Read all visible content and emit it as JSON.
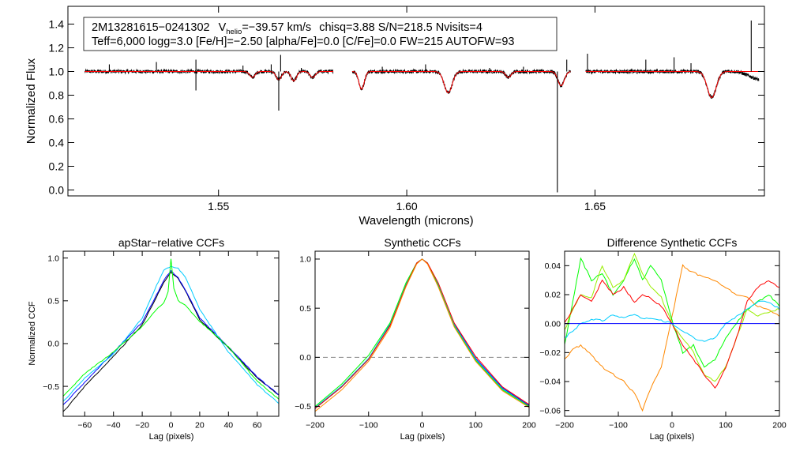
{
  "colors": {
    "observed": "#000000",
    "model": "#ff0000",
    "ccf_series": [
      "#000000",
      "#0000ff",
      "#00ccff",
      "#00ff00",
      "#ff0000",
      "#ff8800",
      "#99ee00"
    ]
  },
  "chart_data": [
    {
      "type": "line",
      "id": "spectrum",
      "title": "",
      "xlabel": "Wavelength (microns)",
      "ylabel": "Normalized Flux",
      "xlim": [
        1.51,
        1.695
      ],
      "ylim": [
        -0.05,
        1.55
      ],
      "xticks": [
        1.55,
        1.6,
        1.65
      ],
      "xtick_labels": [
        "1.55",
        "1.60",
        "1.65"
      ],
      "yticks": [
        0.0,
        0.2,
        0.4,
        0.6,
        0.8,
        1.0,
        1.2,
        1.4
      ],
      "ytick_labels": [
        "0.0",
        "0.2",
        "0.4",
        "0.6",
        "0.8",
        "1.0",
        "1.2",
        "1.4"
      ],
      "header": {
        "star": "2M13281615−0241302",
        "v_label": "V",
        "v_sub": "helio",
        "v_value": "=−39.57 km/s",
        "stats": "chisq=3.88  S/N=218.5  Nvisits=4",
        "params": "Teff=6,000 logg=3.0 [Fe/H]=−2.50 [alpha/Fe]=0.0 [C/Fe]=0.0 FW=215 AUTOFW=93"
      },
      "chips": [
        [
          1.5145,
          1.5805
        ],
        [
          1.5855,
          1.6435
        ],
        [
          1.6475,
          1.6935
        ]
      ],
      "absorption_lines": [
        {
          "x": 1.559,
          "depth": 0.05,
          "width": 0.001
        },
        {
          "x": 1.566,
          "depth": 0.07,
          "width": 0.001
        },
        {
          "x": 1.57,
          "depth": 0.08,
          "width": 0.001
        },
        {
          "x": 1.575,
          "depth": 0.05,
          "width": 0.001
        },
        {
          "x": 1.588,
          "depth": 0.15,
          "width": 0.001
        },
        {
          "x": 1.611,
          "depth": 0.18,
          "width": 0.0015
        },
        {
          "x": 1.627,
          "depth": 0.05,
          "width": 0.001
        },
        {
          "x": 1.641,
          "depth": 0.12,
          "width": 0.0012
        },
        {
          "x": 1.681,
          "depth": 0.22,
          "width": 0.0017
        }
      ],
      "spikes": [
        {
          "x": 1.521,
          "dy": 0.06
        },
        {
          "x": 1.5335,
          "dy": 0.08
        },
        {
          "x": 1.544,
          "dy": 0.1
        },
        {
          "x": 1.544,
          "dy": -0.16
        },
        {
          "x": 1.5565,
          "dy": 0.05
        },
        {
          "x": 1.564,
          "dy": 0.06
        },
        {
          "x": 1.566,
          "dy": -0.33
        },
        {
          "x": 1.5665,
          "dy": 0.14
        },
        {
          "x": 1.572,
          "dy": 0.03
        },
        {
          "x": 1.5935,
          "dy": 0.04
        },
        {
          "x": 1.605,
          "dy": 0.06
        },
        {
          "x": 1.622,
          "dy": 0.03
        },
        {
          "x": 1.631,
          "dy": 0.04
        },
        {
          "x": 1.64,
          "dy": -1.02
        },
        {
          "x": 1.6425,
          "dy": 0.1
        },
        {
          "x": 1.648,
          "dy": 0.15
        },
        {
          "x": 1.6635,
          "dy": 0.1
        },
        {
          "x": 1.671,
          "dy": 0.12
        },
        {
          "x": 1.6755,
          "dy": 0.07
        },
        {
          "x": 1.6915,
          "dy": 0.43
        }
      ],
      "tail": {
        "x0": 1.688,
        "x1": 1.6935,
        "drop": 0.07
      }
    },
    {
      "type": "line",
      "id": "apstar_ccf",
      "title": "apStar−relative CCFs",
      "xlabel": "Lag (pixels)",
      "ylabel": "Normalized CCF",
      "xlim": [
        -75,
        75
      ],
      "ylim": [
        -0.85,
        1.08
      ],
      "xticks": [
        -60,
        -40,
        -20,
        0,
        20,
        40,
        60
      ],
      "xtick_labels": [
        "−60",
        "−40",
        "−20",
        "0",
        "20",
        "40",
        "60"
      ],
      "yticks": [
        -0.5,
        0.0,
        0.5,
        1.0
      ],
      "ytick_labels": [
        "−0.5",
        "0.0",
        "0.5",
        "1.0"
      ],
      "series": [
        {
          "name": "combined-black",
          "color_index": 0,
          "x": [
            -75,
            -60,
            -40,
            -20,
            -10,
            -5,
            0,
            5,
            10,
            20,
            40,
            60,
            75
          ],
          "y": [
            -0.8,
            -0.5,
            -0.15,
            0.22,
            0.55,
            0.72,
            0.83,
            0.76,
            0.62,
            0.28,
            -0.05,
            -0.4,
            -0.6
          ]
        },
        {
          "name": "visit-blue",
          "color_index": 1,
          "x": [
            -75,
            -60,
            -40,
            -20,
            -10,
            -5,
            0,
            5,
            10,
            20,
            40,
            60,
            75
          ],
          "y": [
            -0.72,
            -0.45,
            -0.1,
            0.25,
            0.57,
            0.74,
            0.85,
            0.77,
            0.63,
            0.3,
            -0.04,
            -0.39,
            -0.6
          ]
        },
        {
          "name": "visit-cyan",
          "color_index": 2,
          "x": [
            -75,
            -60,
            -40,
            -20,
            -10,
            -5,
            0,
            5,
            10,
            20,
            40,
            60,
            75
          ],
          "y": [
            -0.68,
            -0.4,
            -0.12,
            0.3,
            0.68,
            0.86,
            0.9,
            0.88,
            0.78,
            0.4,
            -0.1,
            -0.48,
            -0.7
          ]
        },
        {
          "name": "visit-green",
          "color_index": 3,
          "x": [
            -75,
            -60,
            -40,
            -20,
            -10,
            -5,
            -2,
            0,
            2,
            5,
            10,
            20,
            40,
            60,
            75
          ],
          "y": [
            -0.62,
            -0.35,
            -0.1,
            0.2,
            0.4,
            0.48,
            0.6,
            0.99,
            0.65,
            0.5,
            0.45,
            0.26,
            -0.04,
            -0.44,
            -0.65
          ]
        }
      ]
    },
    {
      "type": "line",
      "id": "synthetic_ccf",
      "title": "Synthetic CCFs",
      "xlabel": "Lag (pixels)",
      "ylabel": "",
      "xlim": [
        -200,
        200
      ],
      "ylim": [
        -0.6,
        1.08
      ],
      "xticks": [
        -200,
        -100,
        0,
        100,
        200
      ],
      "xtick_labels": [
        "−200",
        "−100",
        "0",
        "100",
        "200"
      ],
      "yticks": [
        -0.5,
        0.0,
        0.5,
        1.0
      ],
      "ytick_labels": [
        "−0.5",
        "0.0",
        "0.5",
        "1.0"
      ],
      "zero_line": true,
      "series": [
        {
          "name": "combined-black",
          "color_index": 0,
          "x": [
            -200,
            -150,
            -100,
            -60,
            -30,
            -10,
            0,
            10,
            30,
            60,
            100,
            150,
            200
          ],
          "y": [
            -0.52,
            -0.3,
            -0.02,
            0.33,
            0.74,
            0.96,
            1.0,
            0.96,
            0.74,
            0.33,
            -0.02,
            -0.32,
            -0.5
          ]
        },
        {
          "name": "visit-blue",
          "color_index": 1,
          "x": [
            -200,
            -150,
            -100,
            -60,
            -30,
            -10,
            0,
            10,
            30,
            60,
            100,
            150,
            200
          ],
          "y": [
            -0.52,
            -0.3,
            -0.02,
            0.34,
            0.75,
            0.96,
            1.0,
            0.96,
            0.75,
            0.34,
            -0.01,
            -0.31,
            -0.49
          ]
        },
        {
          "name": "visit-cyan",
          "color_index": 2,
          "x": [
            -200,
            -150,
            -100,
            -60,
            -30,
            -10,
            0,
            10,
            30,
            60,
            100,
            150,
            200
          ],
          "y": [
            -0.51,
            -0.29,
            -0.01,
            0.34,
            0.75,
            0.96,
            1.0,
            0.96,
            0.75,
            0.33,
            -0.02,
            -0.32,
            -0.5
          ]
        },
        {
          "name": "visit-green",
          "color_index": 3,
          "x": [
            -200,
            -150,
            -100,
            -60,
            -30,
            -10,
            0,
            10,
            30,
            60,
            100,
            150,
            200
          ],
          "y": [
            -0.5,
            -0.27,
            0.02,
            0.35,
            0.76,
            0.96,
            1.0,
            0.96,
            0.73,
            0.32,
            -0.03,
            -0.33,
            -0.5
          ]
        },
        {
          "name": "visit-red",
          "color_index": 4,
          "x": [
            -200,
            -150,
            -100,
            -60,
            -30,
            -10,
            0,
            10,
            30,
            60,
            100,
            150,
            200
          ],
          "y": [
            -0.52,
            -0.3,
            -0.02,
            0.32,
            0.73,
            0.96,
            1.0,
            0.96,
            0.76,
            0.35,
            0.01,
            -0.3,
            -0.48
          ]
        },
        {
          "name": "visit-orange",
          "color_index": 5,
          "x": [
            -200,
            -150,
            -100,
            -60,
            -30,
            -10,
            0,
            10,
            30,
            60,
            100,
            150,
            200
          ],
          "y": [
            -0.55,
            -0.33,
            -0.04,
            0.3,
            0.72,
            0.95,
            1.0,
            0.95,
            0.72,
            0.31,
            -0.04,
            -0.34,
            -0.51
          ]
        }
      ]
    },
    {
      "type": "line",
      "id": "difference_ccf",
      "title": "Difference Synthetic CCFs",
      "xlabel": "Lag (pixels)",
      "ylabel": "",
      "xlim": [
        -200,
        200
      ],
      "ylim": [
        -0.064,
        0.05
      ],
      "xticks": [
        -200,
        -100,
        0,
        100,
        200
      ],
      "xtick_labels": [
        "−200",
        "−100",
        "0",
        "100",
        "200"
      ],
      "yticks": [
        -0.06,
        -0.04,
        -0.02,
        0.0,
        0.02,
        0.04
      ],
      "ytick_labels": [
        "−0.06",
        "−0.04",
        "−0.02",
        "0.00",
        "0.02",
        "0.04"
      ],
      "series": [
        {
          "name": "diff-orange",
          "color_index": 5,
          "x": [
            -200,
            -185,
            -170,
            -150,
            -130,
            -110,
            -90,
            -70,
            -55,
            -40,
            -20,
            0,
            20,
            40,
            60,
            80,
            100,
            120,
            140,
            160,
            180,
            200
          ],
          "y": [
            -0.025,
            -0.018,
            -0.015,
            -0.022,
            -0.03,
            -0.035,
            -0.04,
            -0.048,
            -0.06,
            -0.045,
            -0.03,
            0.005,
            0.04,
            0.035,
            0.032,
            0.03,
            0.025,
            0.02,
            0.018,
            0.012,
            0.01,
            0.005
          ]
        },
        {
          "name": "diff-green",
          "color_index": 3,
          "x": [
            -200,
            -185,
            -170,
            -150,
            -130,
            -110,
            -90,
            -70,
            -55,
            -40,
            -20,
            0,
            20,
            40,
            60,
            80,
            100,
            120,
            140,
            160,
            180,
            200
          ],
          "y": [
            -0.015,
            0.015,
            0.045,
            0.03,
            0.035,
            0.02,
            0.03,
            0.045,
            0.03,
            0.04,
            0.03,
            0.002,
            -0.02,
            -0.015,
            -0.03,
            -0.025,
            -0.01,
            0.0,
            0.01,
            0.015,
            0.02,
            0.012
          ]
        },
        {
          "name": "diff-lime",
          "color_index": 6,
          "x": [
            -200,
            -185,
            -170,
            -150,
            -130,
            -110,
            -90,
            -70,
            -55,
            -40,
            -20,
            0,
            20,
            40,
            60,
            80,
            100,
            120,
            140,
            160,
            180,
            200
          ],
          "y": [
            -0.005,
            0.01,
            0.02,
            0.018,
            0.04,
            0.025,
            0.03,
            0.048,
            0.035,
            0.025,
            0.018,
            0.0,
            -0.01,
            -0.02,
            -0.035,
            -0.04,
            -0.03,
            -0.01,
            0.01,
            0.005,
            0.008,
            0.01
          ]
        },
        {
          "name": "diff-red",
          "color_index": 4,
          "x": [
            -200,
            -185,
            -170,
            -150,
            -130,
            -110,
            -90,
            -70,
            -55,
            -40,
            -20,
            0,
            20,
            40,
            60,
            80,
            100,
            120,
            140,
            160,
            180,
            200
          ],
          "y": [
            0.0,
            0.01,
            0.02,
            0.015,
            0.03,
            0.02,
            0.025,
            0.015,
            0.02,
            0.018,
            0.012,
            0.0,
            -0.015,
            -0.025,
            -0.035,
            -0.045,
            -0.03,
            -0.01,
            0.015,
            0.025,
            0.03,
            0.025
          ]
        },
        {
          "name": "diff-cyan",
          "color_index": 2,
          "x": [
            -200,
            -185,
            -170,
            -150,
            -130,
            -110,
            -90,
            -70,
            -55,
            -40,
            -20,
            0,
            20,
            40,
            60,
            80,
            100,
            120,
            140,
            160,
            180,
            200
          ],
          "y": [
            -0.01,
            -0.005,
            0.0,
            0.003,
            0.002,
            0.006,
            0.004,
            0.006,
            0.004,
            0.003,
            0.002,
            0.0,
            -0.005,
            -0.01,
            -0.012,
            -0.01,
            0.0,
            0.005,
            0.01,
            0.015,
            0.015,
            0.01
          ]
        },
        {
          "name": "diff-blue",
          "color_index": 1,
          "x": [
            -200,
            200
          ],
          "y": [
            0.0,
            0.0
          ]
        }
      ]
    }
  ]
}
